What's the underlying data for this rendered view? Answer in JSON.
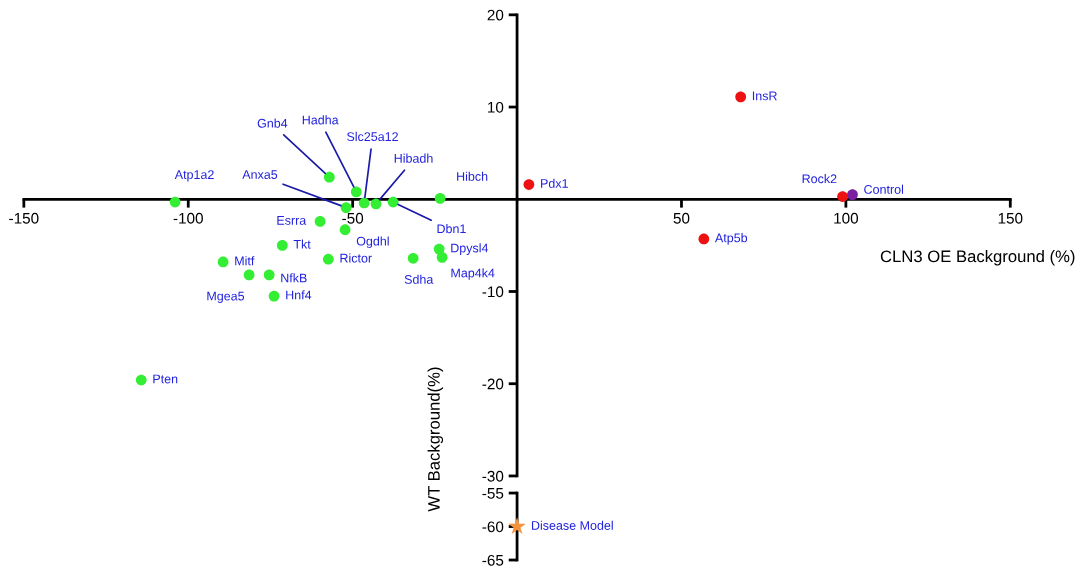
{
  "chart_data": [
    {
      "type": "scatter",
      "xlabel": "CLN3 OE Background (%)",
      "ylabel": "WT Background(%)",
      "xlim": [
        -150,
        150
      ],
      "ylim": [
        -30,
        20
      ],
      "xticks": [
        -150,
        -100,
        -50,
        50,
        100,
        150
      ],
      "yticks": [
        -30,
        -20,
        -10,
        10,
        20
      ],
      "marker": "circle",
      "series": [
        {
          "color": "#33ee33",
          "x": [
            -104,
            -57.1,
            -48.9,
            -46.5,
            -42.9,
            -23.4,
            -52,
            -59.9,
            -52.3,
            -37.7,
            -71.4,
            -57.4,
            -89.4,
            -75.4,
            -81.5,
            -73.9,
            -31.6,
            -23.7,
            -22.8,
            -114.3
          ],
          "values": [
            -0.3,
            2.4,
            0.8,
            -0.4,
            -0.5,
            0.1,
            -0.9,
            -2.4,
            -3.3,
            -0.3,
            -5,
            -6.5,
            -6.8,
            -8.2,
            -8.2,
            -10.5,
            -6.4,
            -5.4,
            -6.3,
            -19.6
          ]
        },
        {
          "color": "#ee1111",
          "x": [
            3.6,
            68,
            56.8,
            99
          ],
          "values": [
            1.6,
            11.1,
            -4.3,
            0.3
          ]
        },
        {
          "color": "#7b1fa2",
          "x": [
            102
          ],
          "values": [
            0.5
          ]
        }
      ],
      "annotations": [
        {
          "text": "Atp1a2",
          "x": -104,
          "y": -0.3
        },
        {
          "text": "Gnb4",
          "x": -57.1,
          "y": 2.4
        },
        {
          "text": "Hadha",
          "x": -48.9,
          "y": 0.8
        },
        {
          "text": "Slc25a12",
          "x": -46.5,
          "y": -0.4
        },
        {
          "text": "Hibadh",
          "x": -42.9,
          "y": -0.5
        },
        {
          "text": "Hibch",
          "x": -23.4,
          "y": 0.1
        },
        {
          "text": "Anxa5",
          "x": -52,
          "y": -0.9
        },
        {
          "text": "Esrra",
          "x": -59.9,
          "y": -2.4
        },
        {
          "text": "Ogdhl",
          "x": -52.3,
          "y": -3.3
        },
        {
          "text": "Dbn1",
          "x": -37.7,
          "y": -0.3
        },
        {
          "text": "Tkt",
          "x": -71.4,
          "y": -5
        },
        {
          "text": "Rictor",
          "x": -57.4,
          "y": -6.5
        },
        {
          "text": "Mitf",
          "x": -89.4,
          "y": -6.8
        },
        {
          "text": "NfkB",
          "x": -75.4,
          "y": -8.2
        },
        {
          "text": "Mgea5",
          "x": -81.5,
          "y": -8.2
        },
        {
          "text": "Hnf4",
          "x": -73.9,
          "y": -10.5
        },
        {
          "text": "Sdha",
          "x": -31.6,
          "y": -6.4
        },
        {
          "text": "Dpysl4",
          "x": -23.7,
          "y": -5.4
        },
        {
          "text": "Map4k4",
          "x": -22.8,
          "y": -6.3
        },
        {
          "text": "Pten",
          "x": -114.3,
          "y": -19.6
        },
        {
          "text": "Pdx1",
          "x": 3.6,
          "y": 1.6
        },
        {
          "text": "InsR",
          "x": 68,
          "y": 11.1
        },
        {
          "text": "Atp5b",
          "x": 56.8,
          "y": -4.3
        },
        {
          "text": "Rock2",
          "x": 99,
          "y": 0.3
        },
        {
          "text": "Control",
          "x": 102,
          "y": 0.5
        }
      ]
    },
    {
      "type": "scatter",
      "xlim": [
        -150,
        150
      ],
      "ylim": [
        -65,
        -55
      ],
      "yticks": [
        -65,
        -60,
        -55
      ],
      "tick_labels": "y",
      "marker": "star",
      "series": [
        {
          "color": "#f5923e",
          "x": [
            0
          ],
          "values": [
            -60
          ]
        }
      ],
      "annotations": [
        {
          "text": "Disease Model",
          "x": 0,
          "y": -60
        }
      ]
    }
  ]
}
